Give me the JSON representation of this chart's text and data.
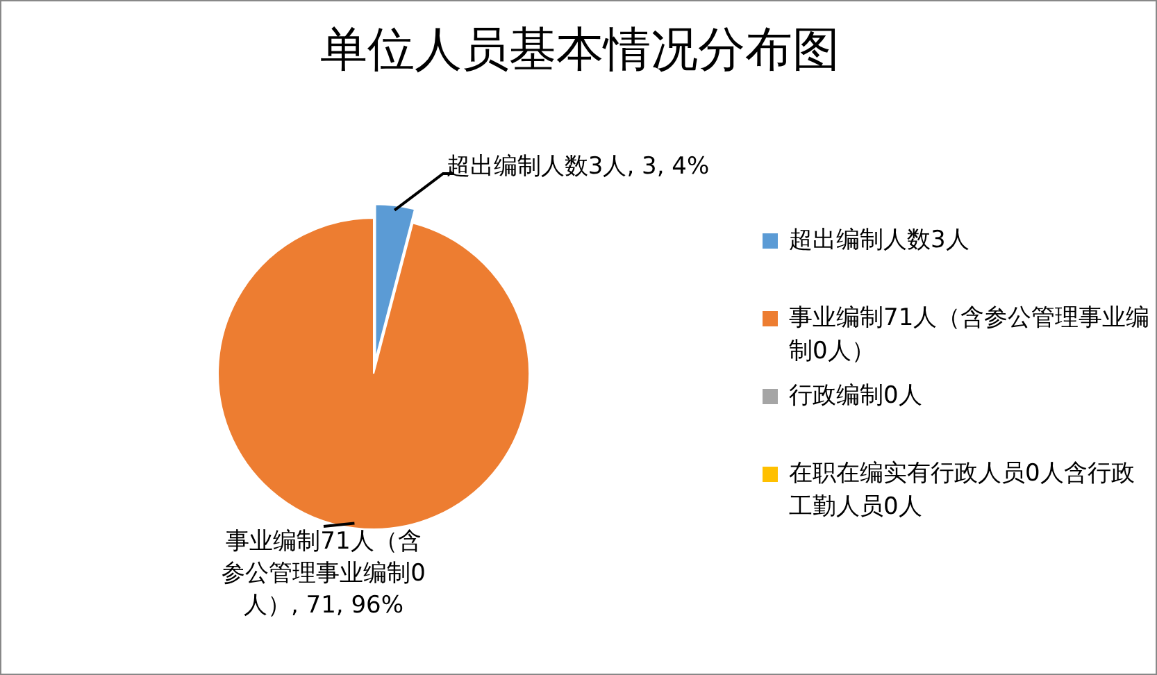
{
  "chart_data": {
    "type": "pie",
    "title": "单位人员基本情况分布图",
    "categories": [
      "超出编制人数3人",
      "事业编制71人（含参公管理事业编制0人）",
      "行政编制0人",
      "在职在编实有行政人员0人含行政工勤人员0人"
    ],
    "values": [
      3,
      71,
      0,
      0
    ],
    "colors": [
      "#5b9bd5",
      "#ed7d31",
      "#a5a5a5",
      "#ffc000"
    ],
    "value_labels": [
      "超出编制人数3人, 3, 4%",
      "事业编制71人（含参公管理事业编制0人）, 71, 96%",
      null,
      null
    ],
    "legend": "right"
  }
}
